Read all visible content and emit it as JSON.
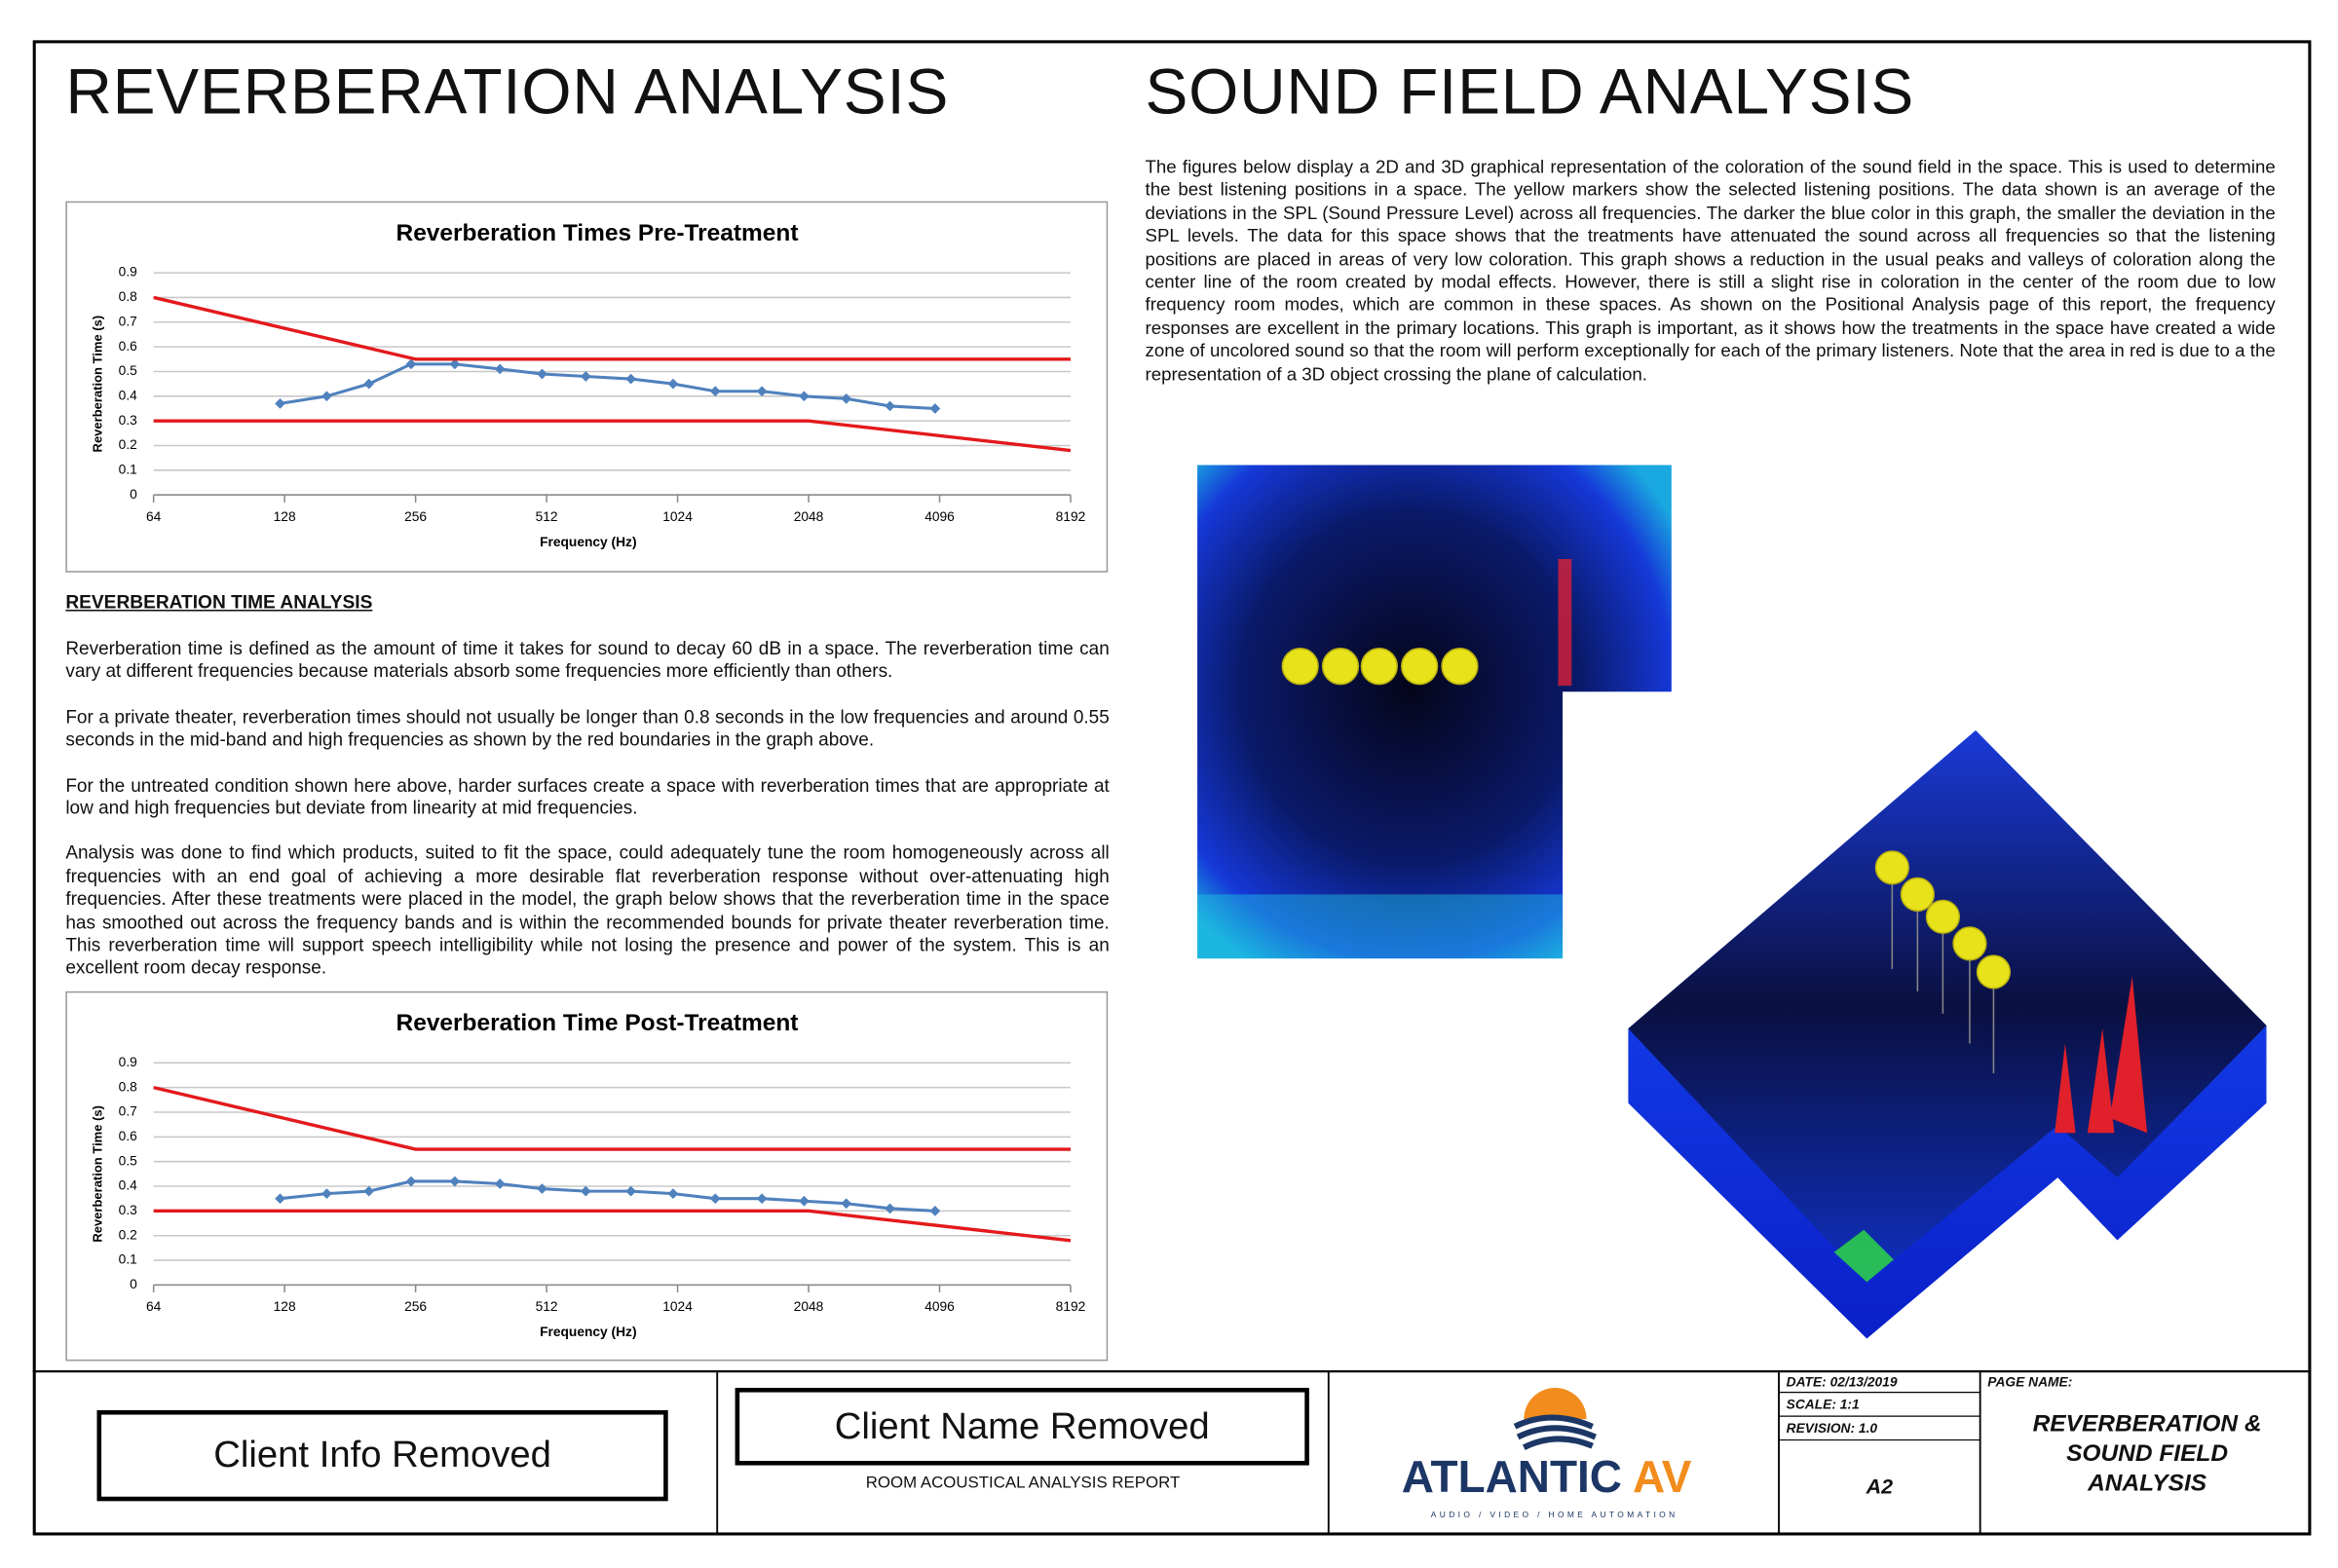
{
  "left_title": "REVERBERATION ANALYSIS",
  "right_title": "SOUND FIELD ANALYSIS",
  "sound_field_text": "The figures below display a 2D and 3D graphical representation of the coloration of the sound field in the space. This is used to determine the best listening positions in a space. The yellow markers show the selected listening positions. The data shown is an average of the deviations in the SPL (Sound Pressure Level) across all frequencies. The darker the blue color in this graph, the smaller the deviation in the SPL levels. The data for this space shows that the treatments have attenuated the sound across all frequencies so that the listening positions are placed in areas of very low coloration. This graph shows a reduction in the usual peaks and valleys of coloration along the center line of the room created by modal effects. However, there is still a slight rise in coloration in the center of the room due to low frequency room modes, which are common in these spaces. As shown on the Positional Analysis page of this report, the frequency responses are excellent in the primary locations. This graph is important, as it shows how the treatments in the space have created a wide zone of uncolored sound so that the room will perform exceptionally for each of the primary listeners. Note that the area in red is due to a the representation of a 3D object crossing the plane of calculation.",
  "analysis": {
    "heading": "REVERBERATION TIME ANALYSIS",
    "paragraphs": [
      "Reverberation time is defined as the amount of time it takes for sound to decay 60 dB in a space. The reverberation time can vary at different frequencies because materials absorb some frequencies more efficiently than others.",
      "For a private theater, reverberation times should not usually be longer than 0.8 seconds in the low frequencies and around 0.55 seconds in the mid-band and high frequencies as shown by the red boundaries in the graph above.",
      "For the untreated condition shown here above, harder surfaces create a space with reverberation times that are appropriate at low and high frequencies but deviate from linearity at mid frequencies.",
      "Analysis was done to find which products, suited to fit the space, could adequately tune the room homogeneously across all frequencies with an end goal of achieving a more desirable flat reverberation response without over-attenuating high frequencies.  After these treatments were placed in the model, the graph below shows that the reverberation time in the space has smoothed out across the frequency bands and is within the recommended bounds for private theater reverberation time. This reverberation time will support speech intelligibility while not losing the presence and power of the system.  This is an excellent room decay response."
    ]
  },
  "chart_data": [
    {
      "type": "line",
      "title": "Reverberation Times Pre-Treatment",
      "x_label": "Frequency (Hz)",
      "y_label": "Reverberation Time (s)",
      "x": [
        125,
        160,
        200,
        250,
        315,
        400,
        500,
        630,
        800,
        1000,
        1250,
        1600,
        2000,
        2500,
        3150,
        4000
      ],
      "xscale": "log",
      "xlim": [
        64,
        8192
      ],
      "xticks": [
        64,
        128,
        256,
        512,
        1024,
        2048,
        4096,
        8192
      ],
      "ylim": [
        0,
        0.9
      ],
      "yticks": [
        0,
        0.1,
        0.2,
        0.3,
        0.4,
        0.5,
        0.6,
        0.7,
        0.8,
        0.9
      ],
      "grid": true,
      "series": [
        {
          "color": "#4f81bd",
          "marker": "diamond",
          "values": [
            0.37,
            0.4,
            0.45,
            0.53,
            0.53,
            0.51,
            0.49,
            0.48,
            0.47,
            0.45,
            0.42,
            0.42,
            0.4,
            0.39,
            0.36,
            0.35
          ]
        },
        {
          "color": "#e3191c",
          "x": [
            64,
            256,
            8192
          ],
          "values": [
            0.8,
            0.55,
            0.55
          ]
        },
        {
          "color": "#e3191c",
          "x": [
            64,
            2048,
            8192
          ],
          "values": [
            0.3,
            0.3,
            0.18
          ]
        }
      ]
    },
    {
      "type": "line",
      "title": "Reverberation Time Post-Treatment",
      "x_label": "Frequency (Hz)",
      "y_label": "Reverberation Time (s)",
      "x": [
        125,
        160,
        200,
        250,
        315,
        400,
        500,
        630,
        800,
        1000,
        1250,
        1600,
        2000,
        2500,
        3150,
        4000
      ],
      "xscale": "log",
      "xlim": [
        64,
        8192
      ],
      "xticks": [
        64,
        128,
        256,
        512,
        1024,
        2048,
        4096,
        8192
      ],
      "ylim": [
        0,
        0.9
      ],
      "yticks": [
        0,
        0.1,
        0.2,
        0.3,
        0.4,
        0.5,
        0.6,
        0.7,
        0.8,
        0.9
      ],
      "grid": true,
      "series": [
        {
          "color": "#4f81bd",
          "marker": "diamond",
          "values": [
            0.35,
            0.37,
            0.38,
            0.42,
            0.42,
            0.41,
            0.39,
            0.38,
            0.38,
            0.37,
            0.35,
            0.35,
            0.34,
            0.33,
            0.31,
            0.3
          ]
        },
        {
          "color": "#e3191c",
          "x": [
            64,
            256,
            8192
          ],
          "values": [
            0.8,
            0.55,
            0.55
          ]
        },
        {
          "color": "#e3191c",
          "x": [
            64,
            2048,
            8192
          ],
          "values": [
            0.3,
            0.3,
            0.18
          ]
        }
      ]
    }
  ],
  "title_block": {
    "client_info": "Client Info Removed",
    "client_name": "Client Name Removed",
    "report": "ROOM ACOUSTICAL ANALYSIS REPORT",
    "logo_name": "ATLANTIC",
    "logo_av": "AV",
    "logo_tagline": "AUDIO / VIDEO / HOME AUTOMATION",
    "date": "DATE: 02/13/2019",
    "scale": "SCALE: 1:1",
    "revision": "REVISION: 1.0",
    "sheet": "A2",
    "page_name_label": "PAGE NAME:",
    "page_name": "REVERBERATION & SOUND FIELD ANALYSIS"
  }
}
